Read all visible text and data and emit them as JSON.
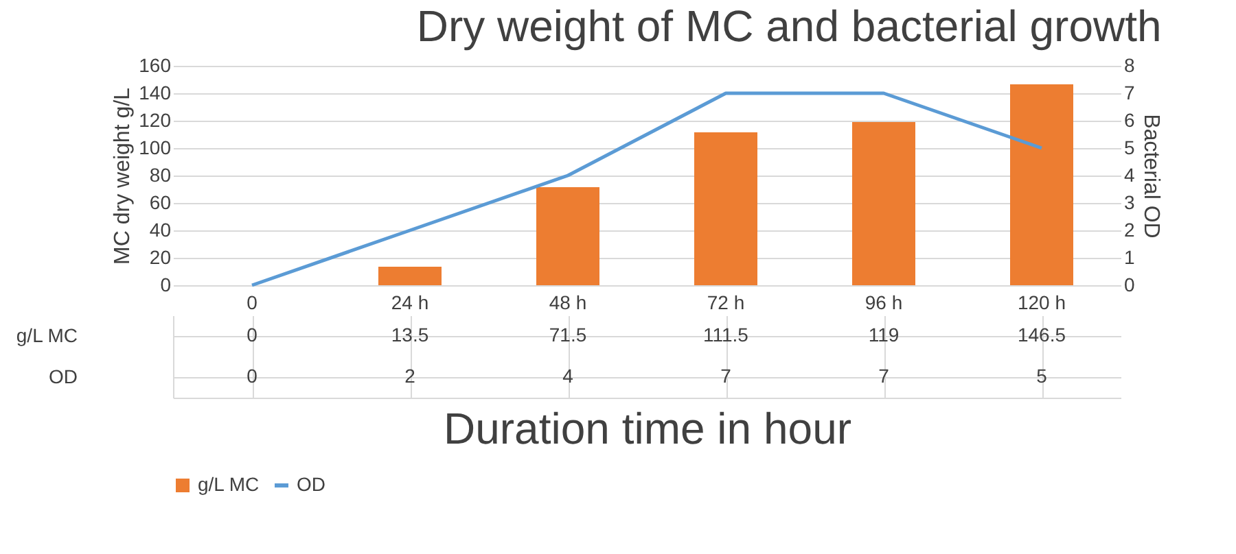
{
  "chart_data": {
    "type": "bar",
    "title": "Dry weight of MC and bacterial growth",
    "xlabel": "Duration time in hour",
    "ylabel": "MC dry weight g/L",
    "y2label": "Bacterial OD",
    "categories": [
      "0",
      "24 h",
      "48 h",
      "72 h",
      "96 h",
      "120 h"
    ],
    "series": [
      {
        "name": "g/L MC",
        "type": "bar",
        "color": "#ed7d31",
        "values": [
          0,
          13.5,
          71.5,
          111.5,
          119,
          146.5
        ]
      },
      {
        "name": "OD",
        "type": "line",
        "axis": "y2",
        "color": "#5b9bd5",
        "values": [
          0,
          2,
          4,
          7,
          7,
          5
        ]
      }
    ],
    "ylim": [
      0,
      160
    ],
    "yticks": [
      0,
      20,
      40,
      60,
      80,
      100,
      120,
      140,
      160
    ],
    "y2lim": [
      0,
      8
    ],
    "y2ticks": [
      0,
      1,
      2,
      3,
      4,
      5,
      6,
      7,
      8
    ],
    "grid": "y",
    "legend": "bottom",
    "data_labels": true
  }
}
